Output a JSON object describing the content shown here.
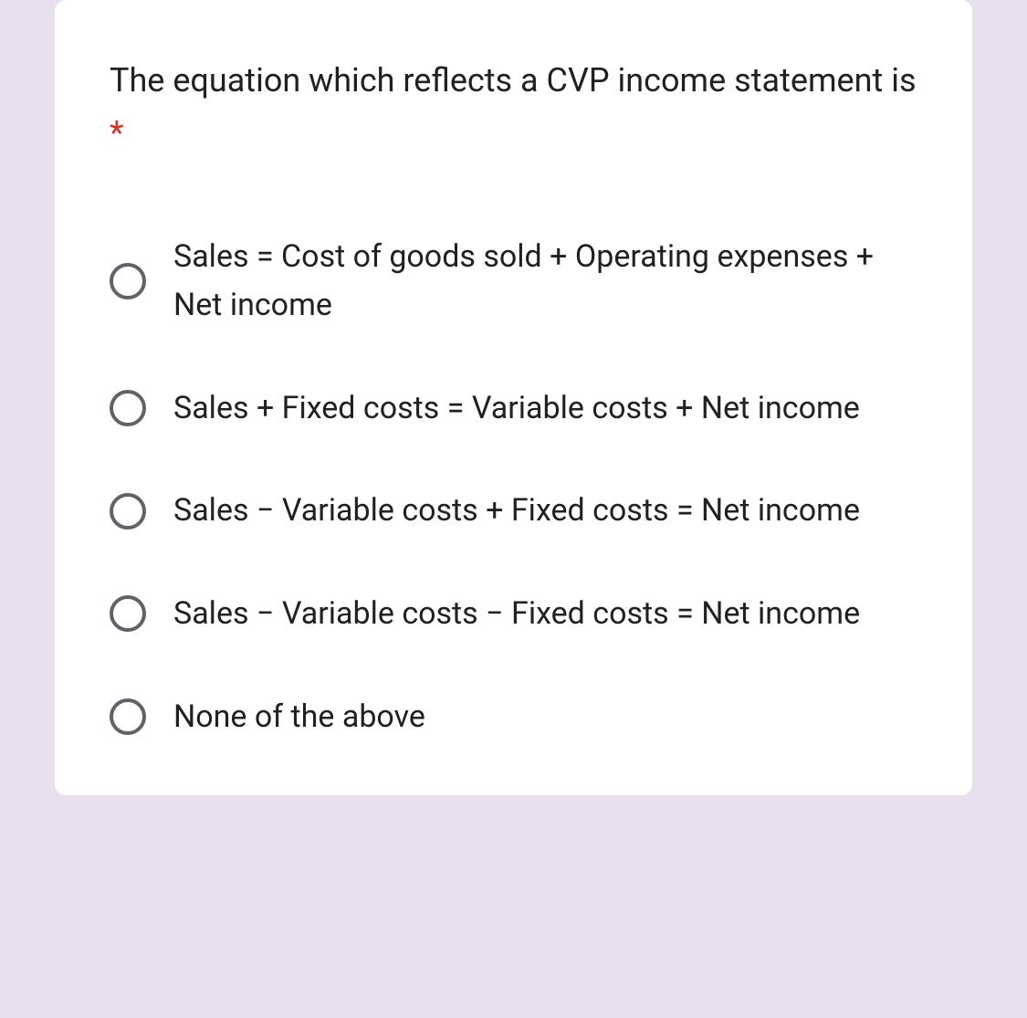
{
  "card": {
    "background_color": "#ffffff",
    "border_radius": 12
  },
  "page": {
    "background_color": "#e8e0ee"
  },
  "question": {
    "text": "The equation which reflects a CVP income statement is",
    "required": true,
    "asterisk_color": "#d93025",
    "text_color": "#202124",
    "font_size": 36
  },
  "options": [
    {
      "label": "Sales = Cost of goods sold + Operating expenses + Net income",
      "selected": false
    },
    {
      "label": "Sales + Fixed costs = Variable costs + Net income",
      "selected": false
    },
    {
      "label": "Sales − Variable costs + Fixed costs = Net income",
      "selected": false
    },
    {
      "label": "Sales − Variable costs − Fixed costs = Net income",
      "selected": false
    },
    {
      "label": "None of the above",
      "selected": false
    }
  ],
  "radio": {
    "border_color": "#5f6368",
    "size": 40,
    "border_width": 4
  },
  "option_style": {
    "text_color": "#202124",
    "font_size": 34
  }
}
